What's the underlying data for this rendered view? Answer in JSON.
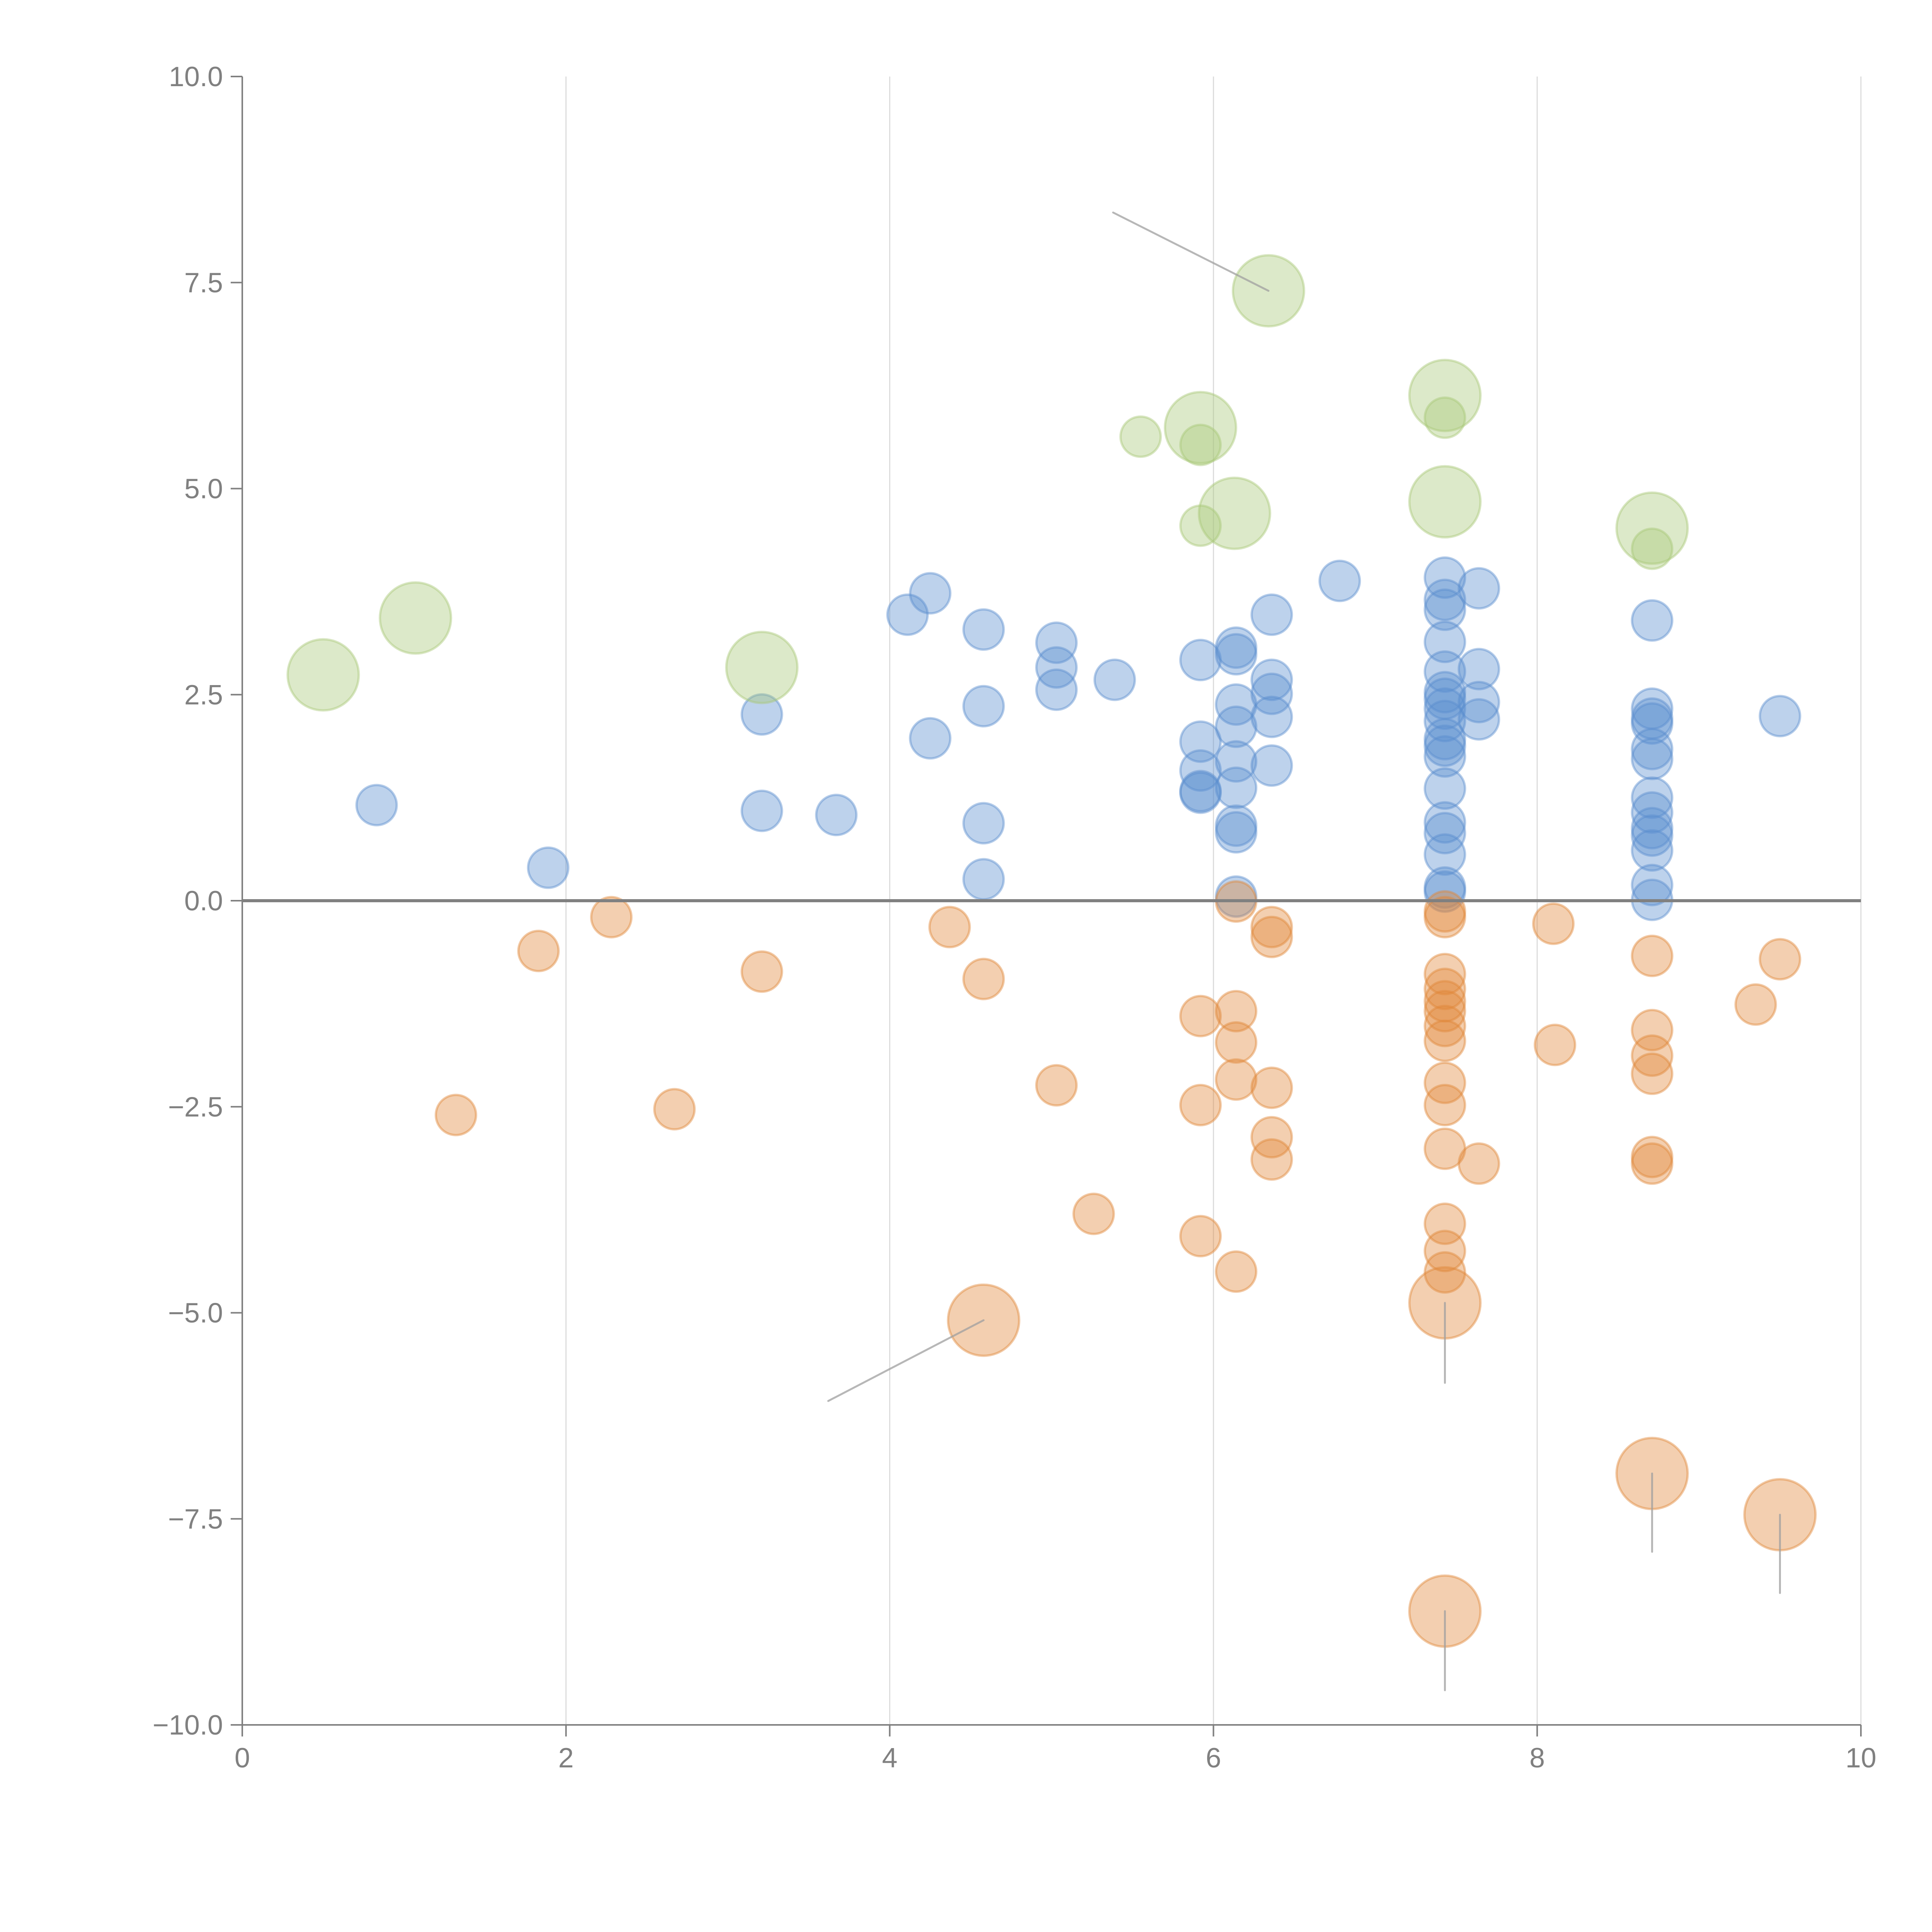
{
  "chart_data": {
    "type": "scatter",
    "title": "",
    "xlabel": "",
    "ylabel": "",
    "xlim": [
      0,
      10
    ],
    "ylim": [
      -10,
      10
    ],
    "x_ticks": [
      "0",
      "2",
      "4",
      "6",
      "8",
      "10"
    ],
    "x_tick_values": [
      0,
      2,
      4,
      6,
      8,
      10
    ],
    "y_ticks": [
      "10.0",
      "7.5",
      "5.0",
      "2.5",
      "0.0",
      "−2.5",
      "−5.0",
      "−7.5",
      "−10.0"
    ],
    "y_tick_values": [
      10,
      7.5,
      5,
      2.5,
      0,
      -2.5,
      -5,
      -7.5,
      -10
    ],
    "grid": "vertical gridlines at x ticks",
    "reference_line": {
      "y": 0
    },
    "legend": "none",
    "colors": {
      "positive": "#5b8fcf",
      "negative": "#e0883a",
      "highlight": "#a8c878"
    },
    "series": [
      {
        "name": "positive",
        "color": "#5b8fcf",
        "size": "small",
        "points": [
          [
            0.83,
            1.16
          ],
          [
            1.89,
            0.4
          ],
          [
            3.21,
            2.26
          ],
          [
            3.21,
            1.09
          ],
          [
            3.67,
            1.04
          ],
          [
            4.11,
            3.47
          ],
          [
            4.25,
            3.73
          ],
          [
            4.25,
            1.97
          ],
          [
            4.58,
            3.29
          ],
          [
            4.58,
            2.36
          ],
          [
            4.58,
            0.94
          ],
          [
            4.58,
            0.26
          ],
          [
            5.03,
            3.13
          ],
          [
            5.03,
            2.83
          ],
          [
            5.03,
            2.56
          ],
          [
            5.39,
            2.68
          ],
          [
            5.92,
            2.92
          ],
          [
            5.92,
            1.93
          ],
          [
            5.92,
            1.58
          ],
          [
            5.92,
            1.33
          ],
          [
            5.92,
            1.31
          ],
          [
            6.14,
            3.07
          ],
          [
            6.14,
            2.99
          ],
          [
            6.14,
            2.38
          ],
          [
            6.14,
            2.11
          ],
          [
            6.14,
            1.69
          ],
          [
            6.14,
            1.37
          ],
          [
            6.14,
            0.91
          ],
          [
            6.14,
            0.83
          ],
          [
            6.14,
            0.05
          ],
          [
            6.36,
            3.47
          ],
          [
            6.36,
            2.68
          ],
          [
            6.36,
            2.51
          ],
          [
            6.36,
            2.23
          ],
          [
            6.36,
            1.64
          ],
          [
            6.78,
            3.88
          ],
          [
            7.43,
            3.92
          ],
          [
            7.43,
            3.65
          ],
          [
            7.43,
            3.53
          ],
          [
            7.43,
            3.14
          ],
          [
            7.43,
            2.78
          ],
          [
            7.43,
            2.53
          ],
          [
            7.43,
            2.45
          ],
          [
            7.43,
            2.33
          ],
          [
            7.43,
            2.18
          ],
          [
            7.43,
            1.96
          ],
          [
            7.43,
            1.88
          ],
          [
            7.43,
            1.75
          ],
          [
            7.43,
            1.36
          ],
          [
            7.43,
            0.95
          ],
          [
            7.43,
            0.82
          ],
          [
            7.43,
            0.56
          ],
          [
            7.43,
            0.16
          ],
          [
            7.43,
            0.11
          ],
          [
            7.64,
            3.79
          ],
          [
            7.64,
            2.81
          ],
          [
            7.64,
            2.41
          ],
          [
            7.64,
            2.2
          ],
          [
            8.71,
            3.4
          ],
          [
            8.71,
            2.33
          ],
          [
            8.71,
            2.21
          ],
          [
            8.71,
            2.15
          ],
          [
            8.71,
            1.84
          ],
          [
            8.71,
            1.72
          ],
          [
            8.71,
            1.25
          ],
          [
            8.71,
            1.07
          ],
          [
            8.71,
            0.88
          ],
          [
            8.71,
            0.79
          ],
          [
            8.71,
            0.61
          ],
          [
            8.71,
            0.19
          ],
          [
            8.71,
            0.01
          ],
          [
            9.5,
            2.24
          ]
        ]
      },
      {
        "name": "negative",
        "color": "#e0883a",
        "size": "small",
        "points": [
          [
            1.32,
            -2.6
          ],
          [
            1.83,
            -0.61
          ],
          [
            2.28,
            -0.2
          ],
          [
            2.67,
            -2.53
          ],
          [
            3.21,
            -0.86
          ],
          [
            4.37,
            -0.32
          ],
          [
            4.58,
            -0.95
          ],
          [
            5.03,
            -2.24
          ],
          [
            5.26,
            -3.8
          ],
          [
            5.92,
            -1.4
          ],
          [
            5.92,
            -2.48
          ],
          [
            5.92,
            -4.07
          ],
          [
            6.14,
            -0.01
          ],
          [
            6.14,
            -1.34
          ],
          [
            6.14,
            -1.72
          ],
          [
            6.14,
            -2.17
          ],
          [
            6.14,
            -4.5
          ],
          [
            6.36,
            -0.32
          ],
          [
            6.36,
            -0.44
          ],
          [
            6.36,
            -2.27
          ],
          [
            6.36,
            -2.87
          ],
          [
            6.36,
            -3.14
          ],
          [
            7.43,
            -0.13
          ],
          [
            7.43,
            -0.2
          ],
          [
            7.43,
            -0.89
          ],
          [
            7.43,
            -1.07
          ],
          [
            7.43,
            -1.22
          ],
          [
            7.43,
            -1.34
          ],
          [
            7.43,
            -1.52
          ],
          [
            7.43,
            -1.7
          ],
          [
            7.43,
            -2.21
          ],
          [
            7.43,
            -2.48
          ],
          [
            7.43,
            -3.01
          ],
          [
            7.43,
            -3.92
          ],
          [
            7.43,
            -4.25
          ],
          [
            7.43,
            -4.51
          ],
          [
            7.64,
            -3.19
          ],
          [
            8.1,
            -0.28
          ],
          [
            8.11,
            -1.75
          ],
          [
            8.71,
            -0.67
          ],
          [
            8.71,
            -1.57
          ],
          [
            8.71,
            -1.88
          ],
          [
            8.71,
            -2.1
          ],
          [
            8.71,
            -3.11
          ],
          [
            8.71,
            -3.19
          ],
          [
            9.35,
            -1.26
          ],
          [
            9.5,
            -0.71
          ]
        ]
      },
      {
        "name": "negative-highlighted",
        "color": "#e0883a",
        "size": "large",
        "points": [
          [
            4.58,
            -5.09
          ],
          [
            7.43,
            -4.88
          ],
          [
            8.71,
            -6.95
          ],
          [
            9.5,
            -7.45
          ],
          [
            7.43,
            -8.62
          ]
        ]
      },
      {
        "name": "highlight-small",
        "color": "#a8c878",
        "size": "small",
        "points": [
          [
            5.55,
            5.63
          ],
          [
            5.92,
            5.53
          ],
          [
            5.92,
            4.55
          ],
          [
            7.43,
            5.86
          ],
          [
            8.71,
            4.27
          ]
        ]
      },
      {
        "name": "highlight-large",
        "color": "#a8c878",
        "size": "large",
        "points": [
          [
            0.5,
            2.74
          ],
          [
            1.07,
            3.43
          ],
          [
            3.21,
            2.83
          ],
          [
            5.92,
            5.74
          ],
          [
            6.13,
            4.7
          ],
          [
            6.34,
            7.4
          ],
          [
            7.43,
            6.13
          ],
          [
            7.43,
            4.84
          ],
          [
            8.71,
            4.52
          ]
        ]
      }
    ],
    "annotations": [
      {
        "point": [
          6.34,
          7.4
        ],
        "leader_to": [
          5.38,
          8.35
        ],
        "text": ""
      },
      {
        "point": [
          4.58,
          -5.09
        ],
        "leader_to": [
          3.62,
          -6.07
        ],
        "text": ""
      },
      {
        "point": [
          7.43,
          -4.88
        ],
        "leader_to": [
          7.43,
          -5.85
        ],
        "text": ""
      },
      {
        "point": [
          8.71,
          -6.95
        ],
        "leader_to": [
          8.71,
          -7.9
        ],
        "text": ""
      },
      {
        "point": [
          9.5,
          -7.45
        ],
        "leader_to": [
          9.5,
          -8.4
        ],
        "text": ""
      },
      {
        "point": [
          7.43,
          -8.62
        ],
        "leader_to": [
          7.43,
          -9.58
        ],
        "text": ""
      }
    ]
  }
}
